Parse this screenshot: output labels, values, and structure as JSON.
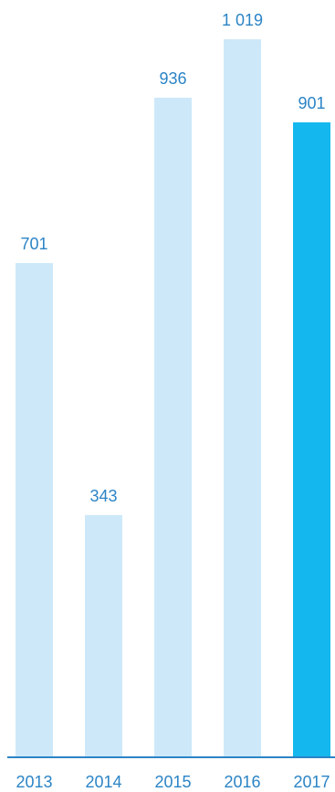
{
  "chart_data": {
    "type": "bar",
    "categories": [
      "2013",
      "2014",
      "2015",
      "2016",
      "2017"
    ],
    "values": [
      701,
      343,
      936,
      1019,
      901
    ],
    "value_labels": [
      "701",
      "343",
      "936",
      "1 019",
      "901"
    ],
    "highlight_index": 4,
    "ylim": [
      0,
      1019
    ],
    "grid": false,
    "title": "",
    "xlabel": "",
    "ylabel": "",
    "colors": {
      "bar": "#cde9f9",
      "highlight": "#14b8ee",
      "label": "#2b84c6",
      "axis": "#2b84c6"
    }
  }
}
